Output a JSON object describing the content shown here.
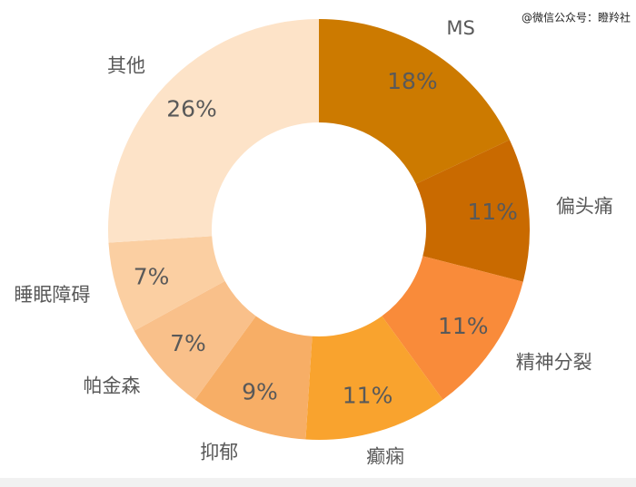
{
  "chart_data": {
    "type": "donut",
    "categories": [
      "MS",
      "偏头痛",
      "精神分裂",
      "癫痫",
      "抑郁",
      "帕金森",
      "睡眠障碍",
      "其他"
    ],
    "values": [
      18,
      11,
      11,
      11,
      9,
      7,
      7,
      26
    ],
    "value_labels": [
      "18%",
      "11%",
      "11%",
      "11%",
      "9%",
      "7%",
      "7%",
      "26%"
    ],
    "colors": [
      "#cc7a00",
      "#c96a00",
      "#f98b3a",
      "#f9a32e",
      "#f7ae66",
      "#f9c08a",
      "#fbcfa2",
      "#fde3c8"
    ]
  },
  "watermark": "@微信公众号：瞪羚社"
}
